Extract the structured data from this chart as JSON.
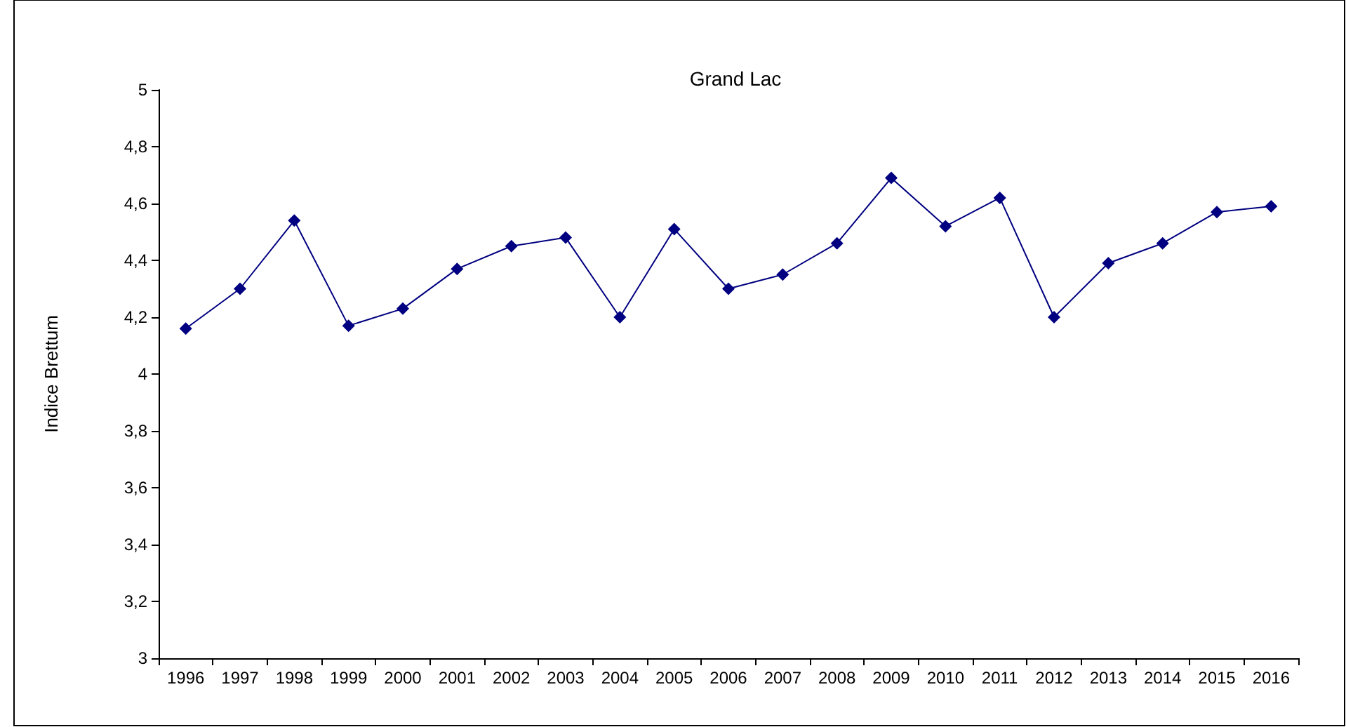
{
  "chart_data": {
    "type": "line",
    "title": "Grand Lac",
    "ylabel": "Indice Brettum",
    "categories": [
      "1996",
      "1997",
      "1998",
      "1999",
      "2000",
      "2001",
      "2002",
      "2003",
      "2004",
      "2005",
      "2006",
      "2007",
      "2008",
      "2009",
      "2010",
      "2011",
      "2012",
      "2013",
      "2014",
      "2015",
      "2016"
    ],
    "series": [
      {
        "color": "#000080",
        "values": [
          4.16,
          4.3,
          4.54,
          4.17,
          4.23,
          4.37,
          4.45,
          4.48,
          4.2,
          4.51,
          4.3,
          4.35,
          4.46,
          4.69,
          4.52,
          4.62,
          4.2,
          4.39,
          4.46,
          4.57,
          4.59
        ]
      }
    ],
    "ylim": [
      3,
      5
    ],
    "yticks": [
      3,
      {
        "value": 3.2,
        "label": "3,2"
      },
      {
        "value": 3.4,
        "label": "3,4"
      },
      {
        "value": 3.6,
        "label": "3,6"
      },
      {
        "value": 3.8,
        "label": "3,8"
      },
      4,
      {
        "value": 4.2,
        "label": "4,2"
      },
      {
        "value": 4.4,
        "label": "4,4"
      },
      {
        "value": 4.6,
        "label": "4,6"
      },
      {
        "value": 4.8,
        "label": "4,8"
      },
      5
    ],
    "grid": false,
    "marker": "diamond",
    "line_style": "solid"
  }
}
